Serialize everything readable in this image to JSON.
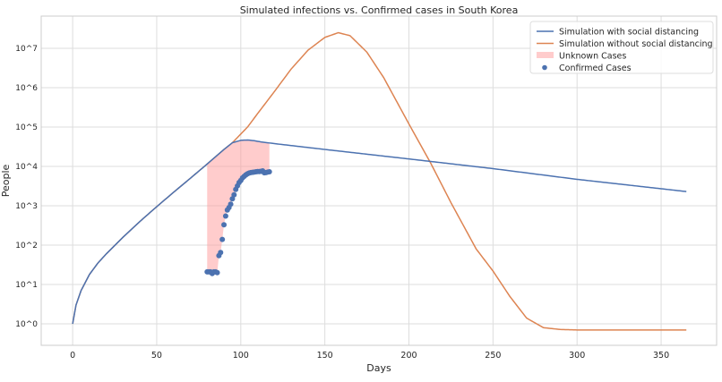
{
  "chart_data": {
    "type": "line",
    "title": "Simulated infections vs. Confirmed cases in South Korea",
    "xlabel": "Days",
    "ylabel": "People",
    "xlim": [
      -18.7,
      383
    ],
    "ylim": [
      0.285,
      66000000
    ],
    "yscale": "log",
    "grid": true,
    "legend_position": "top-right",
    "x_ticks": [
      0,
      50,
      100,
      150,
      200,
      250,
      300,
      350
    ],
    "y_ticks": [
      {
        "v": 1,
        "label": "10^0"
      },
      {
        "v": 10,
        "label": "10^1"
      },
      {
        "v": 100,
        "label": "10^2"
      },
      {
        "v": 1000,
        "label": "10^3"
      },
      {
        "v": 10000,
        "label": "10^4"
      },
      {
        "v": 100000,
        "label": "10^5"
      },
      {
        "v": 1000000,
        "label": "10^6"
      },
      {
        "v": 10000000,
        "label": "10^7"
      }
    ],
    "series": [
      {
        "name": "Simulation with social distancing",
        "color": "#4c72b0",
        "x": [
          0,
          2,
          5,
          10,
          15,
          20,
          30,
          40,
          50,
          60,
          70,
          80,
          90,
          95,
          100,
          104,
          108,
          112,
          120,
          150,
          200,
          250,
          300,
          365
        ],
        "y": [
          1,
          3,
          7,
          18,
          35,
          60,
          160,
          400,
          950,
          2200,
          5000,
          11500,
          27000,
          40000,
          46000,
          47000,
          45000,
          42000,
          38000,
          27000,
          15500,
          8800,
          4700,
          2300
        ]
      },
      {
        "name": "Simulation without social distancing",
        "color": "#dd8452",
        "x": [
          0,
          2,
          5,
          10,
          15,
          20,
          30,
          40,
          50,
          60,
          70,
          80,
          90,
          95,
          104,
          110,
          120,
          130,
          140,
          150,
          158,
          165,
          175,
          185,
          200,
          213,
          225,
          240,
          250,
          260,
          270,
          280,
          290,
          300,
          365
        ],
        "y": [
          1,
          3,
          7,
          18,
          35,
          60,
          160,
          400,
          950,
          2200,
          5000,
          11500,
          27000,
          40000,
          100000,
          220000,
          800000,
          3000000,
          9000000,
          19000000,
          25000000,
          21000000,
          8000000,
          1800000,
          120000,
          12000,
          1200,
          80,
          22,
          5,
          1.4,
          0.8,
          0.72,
          0.7,
          0.7
        ]
      },
      {
        "name": "Confirmed Cases",
        "color": "#4c72b0",
        "type": "scatter",
        "x": [
          80,
          81,
          82,
          83,
          84,
          85,
          86,
          87,
          88,
          89,
          90,
          91,
          92,
          93,
          94,
          95,
          96,
          97,
          98,
          99,
          100,
          101,
          102,
          103,
          104,
          105,
          106,
          107,
          108,
          109,
          110,
          111,
          112,
          113,
          114,
          115,
          116,
          117
        ],
        "y": [
          21,
          21,
          21,
          19,
          21,
          21,
          20,
          54,
          65,
          140,
          330,
          550,
          780,
          900,
          1100,
          1500,
          1900,
          2600,
          3200,
          3900,
          4400,
          5100,
          5600,
          6100,
          6500,
          6800,
          7000,
          7100,
          7200,
          7300,
          7400,
          7400,
          7500,
          7700,
          6900,
          7000,
          7200,
          7300
        ]
      }
    ],
    "fill": {
      "name": "Unknown Cases",
      "color": "#ff9999",
      "between": [
        "Simulation with social distancing",
        "Confirmed Cases"
      ],
      "x_range": [
        80,
        117
      ]
    }
  }
}
